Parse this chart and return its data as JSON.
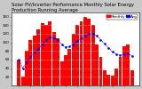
{
  "title": "Solar PV/Inverter Performance Monthly Solar Energy Production Running Average",
  "bar_values": [
    60,
    20,
    80,
    105,
    115,
    130,
    145,
    140,
    150,
    125,
    110,
    55,
    70,
    85,
    120,
    140,
    150,
    160,
    155,
    140,
    95,
    65,
    35,
    25,
    22,
    40,
    65,
    90,
    95,
    35
  ],
  "running_avg": [
    60,
    40,
    53,
    66,
    76,
    85,
    95,
    105,
    112,
    110,
    105,
    95,
    89,
    90,
    96,
    104,
    110,
    116,
    119,
    120,
    115,
    106,
    97,
    87,
    78,
    73,
    70,
    73,
    75,
    68
  ],
  "bar_color": "#ff0000",
  "avg_color": "#0000ff",
  "bg_color": "#c8c8c8",
  "plot_bg": "#ffffff",
  "grid_color": "#ffffff",
  "ylim": [
    0,
    170
  ],
  "ytick_vals": [
    20,
    40,
    60,
    80,
    100,
    120,
    140,
    160
  ],
  "title_fontsize": 3.8,
  "tick_fontsize": 3.0,
  "legend_fontsize": 3.0
}
